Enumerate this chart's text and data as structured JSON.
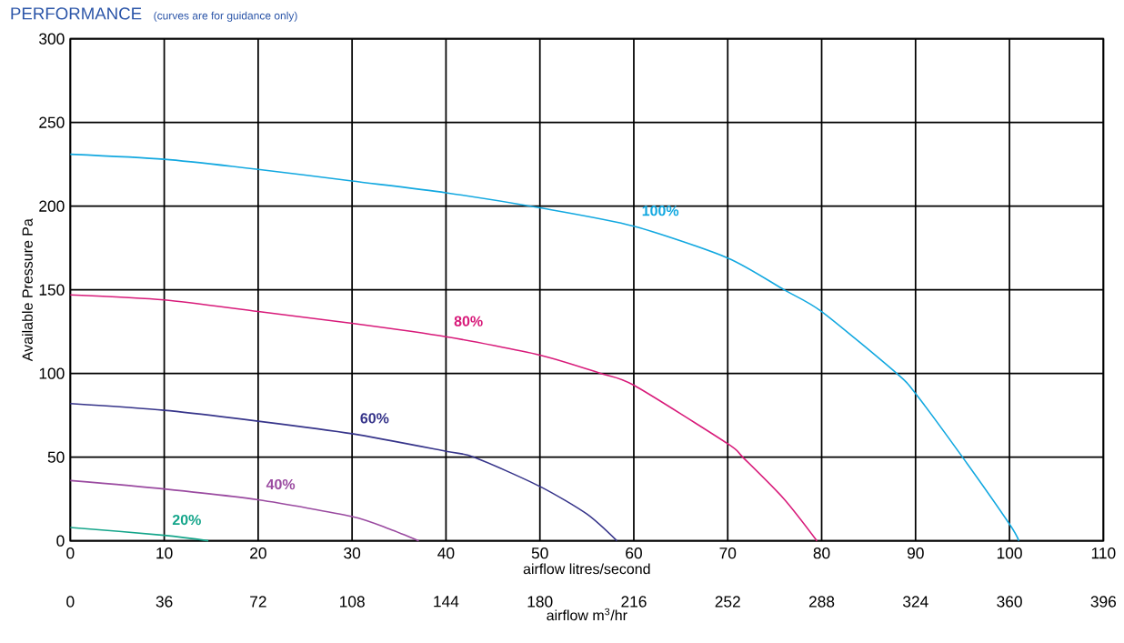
{
  "chart_data": {
    "type": "line",
    "title": "PERFORMANCE",
    "subtitle": "(curves are for guidance only)",
    "xlabel": "airflow litres/second",
    "x2label": "airflow m$^{3}$/hr",
    "ylabel": "Available Pressure Pa",
    "xlim": [
      0,
      110
    ],
    "xticks": [
      0,
      10,
      20,
      30,
      40,
      50,
      60,
      70,
      80,
      90,
      100,
      110
    ],
    "x2lim": [
      0,
      396
    ],
    "x2ticks": [
      0,
      36,
      72,
      108,
      144,
      180,
      216,
      252,
      288,
      324,
      360,
      396
    ],
    "ylim": [
      0,
      300
    ],
    "yticks": [
      0,
      50,
      100,
      150,
      200,
      250,
      300
    ],
    "grid": true,
    "marker": "none",
    "line_style": "solid",
    "series": [
      {
        "name": "100%",
        "color": "#12a8e0",
        "x": [
          0,
          10,
          20,
          30,
          40,
          50,
          60,
          70,
          76,
          80,
          88,
          90,
          95,
          100,
          101
        ],
        "values": [
          231,
          228,
          222,
          215,
          208,
          199,
          188,
          169,
          150,
          137,
          100,
          88,
          50,
          10,
          0
        ]
      },
      {
        "name": "80%",
        "color": "#d81b7a",
        "x": [
          0,
          10,
          20,
          30,
          40,
          50,
          56.5,
          60,
          70,
          71.6,
          76,
          79.5
        ],
        "values": [
          147,
          144,
          137,
          130,
          122,
          111,
          100,
          93,
          58,
          50,
          25,
          0
        ]
      },
      {
        "name": "60%",
        "color": "#36348a",
        "x": [
          0,
          10,
          20,
          30,
          40,
          43,
          50,
          55,
          58.2
        ],
        "values": [
          82,
          78,
          71.5,
          64,
          53.5,
          50,
          32.5,
          16,
          0
        ]
      },
      {
        "name": "40%",
        "color": "#9a4aa0",
        "x": [
          0,
          10,
          20,
          30,
          34,
          37.1
        ],
        "values": [
          36,
          31,
          24.5,
          14.5,
          7,
          0
        ]
      },
      {
        "name": "20%",
        "color": "#14a58a",
        "x": [
          0,
          10,
          14.7
        ],
        "values": [
          8,
          3.3,
          0
        ]
      }
    ]
  }
}
